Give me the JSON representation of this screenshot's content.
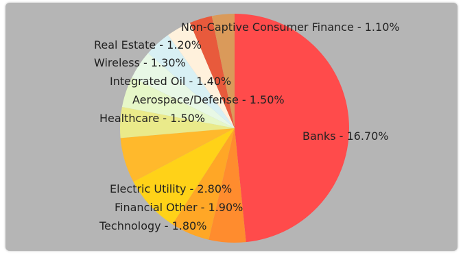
{
  "chart_data": {
    "type": "pie",
    "slices": [
      {
        "label": "Banks",
        "value": 16.7,
        "text": "Banks - 16.70%",
        "color": "#ff4b4b"
      },
      {
        "label": "Technology",
        "value": 1.8,
        "text": "Technology - 1.80%",
        "color": "#ff8c2e"
      },
      {
        "label": "Financial Other",
        "value": 1.9,
        "text": "Financial Other - 1.90%",
        "color": "#ffa726"
      },
      {
        "label": "Electric Utility",
        "value": 2.8,
        "text": "Electric Utility - 2.80%",
        "color": "#ffd218"
      },
      {
        "label": "Other (unlabeled)",
        "value": 2.2,
        "text": "",
        "color": "#ffb92c"
      },
      {
        "label": "Healthcare",
        "value": 1.5,
        "text": "Healthcare - 1.50%",
        "color": "#eaea8a"
      },
      {
        "label": "Aerospace/Defense",
        "value": 1.5,
        "text": "Aerospace/Defense - 1.50%",
        "color": "#e6f7c8"
      },
      {
        "label": "Integrated Oil",
        "value": 1.4,
        "text": "Integrated Oil - 1.40%",
        "color": "#e8f8e6"
      },
      {
        "label": "Wireless",
        "value": 1.3,
        "text": "Wireless - 1.30%",
        "color": "#d8f0f4"
      },
      {
        "label": "Real Estate",
        "value": 1.2,
        "text": "Real Estate - 1.20%",
        "color": "#fff1dc"
      },
      {
        "label": "Unlabeled",
        "value": 1.1,
        "text": "",
        "color": "#e85a3c"
      },
      {
        "label": "Non-Captive Consumer Finance",
        "value": 1.1,
        "text": "Non-Captive Consumer Finance - 1.10%",
        "color": "#da9a5a"
      }
    ],
    "start_angle_deg": 0,
    "direction": "clockwise"
  }
}
